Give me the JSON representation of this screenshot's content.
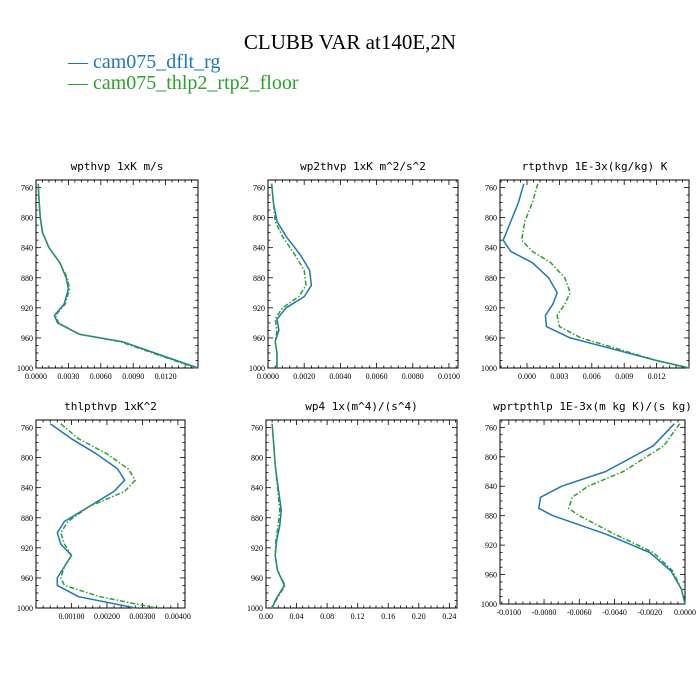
{
  "title": "CLUBB VAR at140E,2N",
  "legend": [
    {
      "label": "— cam075_dflt_rg",
      "color": "#1f77b4"
    },
    {
      "label": "— cam075_thlp2_rtp2_floor",
      "color": "#2ca02c"
    }
  ],
  "chart_data": [
    {
      "type": "line",
      "title": "wpthvp  1xK m/s",
      "xlim": [
        0,
        0.015
      ],
      "xticks": [
        0,
        0.003,
        0.006,
        0.009,
        0.012
      ],
      "xtick_labels": [
        "0.0000",
        "0.0030",
        "0.0060",
        "0.0090",
        "0.0120"
      ],
      "ylim": [
        1000,
        750
      ],
      "yticks": [
        760,
        800,
        840,
        880,
        920,
        960,
        1000
      ],
      "series": [
        {
          "name": "cam075_dflt_rg",
          "color": "#1f77b4",
          "dash": false,
          "x": [
            0.0002,
            0.0003,
            0.0004,
            0.0006,
            0.0012,
            0.0022,
            0.0028,
            0.003,
            0.0026,
            0.0017,
            0.002,
            0.004,
            0.008,
            0.011,
            0.015
          ],
          "y": [
            755,
            780,
            800,
            820,
            840,
            860,
            880,
            895,
            915,
            930,
            940,
            955,
            965,
            980,
            1000
          ]
        },
        {
          "name": "cam075_thlp2_rtp2_floor",
          "color": "#2ca02c",
          "dash": true,
          "x": [
            0.0002,
            0.0003,
            0.0004,
            0.0006,
            0.0012,
            0.0022,
            0.0029,
            0.0031,
            0.0027,
            0.0018,
            0.0021,
            0.004,
            0.0078,
            0.0108,
            0.0148
          ],
          "y": [
            755,
            780,
            800,
            820,
            840,
            860,
            880,
            895,
            915,
            930,
            940,
            955,
            965,
            980,
            1000
          ]
        }
      ]
    },
    {
      "type": "line",
      "title": "wp2thvp  1xK m^2/s^2",
      "xlim": [
        0,
        0.0105
      ],
      "xticks": [
        0,
        0.002,
        0.004,
        0.006,
        0.008,
        0.01
      ],
      "xtick_labels": [
        "0.0000",
        "0.0020",
        "0.0040",
        "0.0060",
        "0.0080",
        "0.0100"
      ],
      "ylim": [
        1000,
        750
      ],
      "yticks": [
        760,
        800,
        840,
        880,
        920,
        960,
        1000
      ],
      "series": [
        {
          "name": "cam075_dflt_rg",
          "color": "#1f77b4",
          "dash": false,
          "x": [
            0.0002,
            0.0003,
            0.0005,
            0.001,
            0.0018,
            0.0023,
            0.0024,
            0.002,
            0.001,
            0.0005,
            0.0006,
            0.0004,
            0.0005,
            0.0005
          ],
          "y": [
            755,
            780,
            805,
            825,
            850,
            870,
            890,
            905,
            920,
            935,
            950,
            965,
            980,
            1000
          ]
        },
        {
          "name": "cam075_thlp2_rtp2_floor",
          "color": "#2ca02c",
          "dash": true,
          "x": [
            0.0002,
            0.0003,
            0.0004,
            0.0008,
            0.0015,
            0.002,
            0.0021,
            0.0017,
            0.0008,
            0.0004,
            0.0005,
            0.0004,
            0.0005,
            0.0005
          ],
          "y": [
            755,
            780,
            805,
            825,
            850,
            870,
            890,
            905,
            920,
            935,
            950,
            965,
            980,
            1000
          ]
        }
      ]
    },
    {
      "type": "line",
      "title": "rtpthvp  1E-3x(kg/kg) K",
      "xlim": [
        -0.0025,
        0.015
      ],
      "xticks": [
        0,
        0.003,
        0.006,
        0.009,
        0.012
      ],
      "xtick_labels": [
        "0.000",
        "0.003",
        "0.006",
        "0.009",
        "0.012"
      ],
      "ylim": [
        1000,
        750
      ],
      "yticks": [
        760,
        800,
        840,
        880,
        920,
        960,
        1000
      ],
      "series": [
        {
          "name": "cam075_dflt_rg",
          "color": "#1f77b4",
          "dash": false,
          "x": [
            -0.0003,
            -0.0008,
            -0.0015,
            -0.0022,
            -0.0015,
            0.0005,
            0.002,
            0.0028,
            0.0024,
            0.0017,
            0.0018,
            0.004,
            0.008,
            0.012,
            0.015
          ],
          "y": [
            755,
            780,
            805,
            830,
            845,
            860,
            880,
            900,
            915,
            930,
            945,
            960,
            975,
            990,
            1000
          ]
        },
        {
          "name": "cam075_thlp2_rtp2_floor",
          "color": "#2ca02c",
          "dash": true,
          "x": [
            0.001,
            0.0005,
            -0.0002,
            -0.0005,
            0.0005,
            0.0022,
            0.0035,
            0.004,
            0.0035,
            0.0028,
            0.003,
            0.005,
            0.0085,
            0.012,
            0.015
          ],
          "y": [
            755,
            780,
            805,
            830,
            845,
            860,
            880,
            900,
            915,
            930,
            945,
            960,
            975,
            990,
            1000
          ]
        }
      ]
    },
    {
      "type": "line",
      "title": "thlpthvp  1xK^2",
      "xlim": [
        0,
        0.0042
      ],
      "xticks": [
        0.001,
        0.002,
        0.003,
        0.004
      ],
      "xtick_labels": [
        "0.00100",
        "0.00200",
        "0.00300",
        "0.00400"
      ],
      "ylim": [
        1000,
        750
      ],
      "yticks": [
        760,
        800,
        840,
        880,
        920,
        960,
        1000
      ],
      "series": [
        {
          "name": "cam075_dflt_rg",
          "color": "#1f77b4",
          "dash": false,
          "x": [
            0.0004,
            0.001,
            0.0017,
            0.0023,
            0.0025,
            0.0022,
            0.0015,
            0.0008,
            0.0006,
            0.0007,
            0.001,
            0.0008,
            0.0006,
            0.0006,
            0.0012,
            0.0028
          ],
          "y": [
            755,
            775,
            795,
            815,
            830,
            845,
            865,
            885,
            900,
            915,
            930,
            945,
            960,
            970,
            985,
            1000
          ]
        },
        {
          "name": "cam075_thlp2_rtp2_floor",
          "color": "#2ca02c",
          "dash": true,
          "x": [
            0.0007,
            0.0012,
            0.002,
            0.0026,
            0.0028,
            0.0025,
            0.0015,
            0.0009,
            0.0007,
            0.0008,
            0.001,
            0.0008,
            0.0007,
            0.0008,
            0.0018,
            0.0034
          ],
          "y": [
            755,
            775,
            795,
            815,
            830,
            845,
            865,
            885,
            900,
            915,
            930,
            945,
            960,
            970,
            985,
            1000
          ]
        }
      ]
    },
    {
      "type": "line",
      "title": "wp4  1x(m^4)/(s^4)",
      "xlim": [
        0,
        0.25
      ],
      "xticks": [
        0,
        0.04,
        0.08,
        0.12,
        0.16,
        0.2,
        0.24
      ],
      "xtick_labels": [
        "0.00",
        "0.04",
        "0.08",
        "0.12",
        "0.16",
        "0.20",
        "0.24"
      ],
      "ylim": [
        1000,
        750
      ],
      "yticks": [
        760,
        800,
        840,
        880,
        920,
        960,
        1000
      ],
      "series": [
        {
          "name": "cam075_dflt_rg",
          "color": "#1f77b4",
          "dash": false,
          "x": [
            0.008,
            0.01,
            0.012,
            0.016,
            0.02,
            0.018,
            0.014,
            0.012,
            0.015,
            0.024,
            0.012,
            0.008
          ],
          "y": [
            755,
            780,
            810,
            840,
            870,
            890,
            910,
            930,
            950,
            970,
            990,
            1000
          ]
        },
        {
          "name": "cam075_thlp2_rtp2_floor",
          "color": "#2ca02c",
          "dash": true,
          "x": [
            0.008,
            0.01,
            0.012,
            0.015,
            0.018,
            0.016,
            0.013,
            0.012,
            0.015,
            0.025,
            0.013,
            0.008
          ],
          "y": [
            755,
            780,
            810,
            840,
            870,
            890,
            910,
            930,
            950,
            970,
            990,
            1000
          ]
        }
      ]
    },
    {
      "type": "line",
      "title": "wprtpthlp  1E-3x(m kg K)/(s kg)",
      "xlim": [
        -0.0105,
        0.0
      ],
      "xticks": [
        -0.01,
        -0.008,
        -0.006,
        -0.004,
        -0.002,
        0.0
      ],
      "xtick_labels": [
        "-0.0100",
        "-0.0080",
        "-0.0060",
        "-0.0040",
        "-0.0020",
        "0.0000"
      ],
      "ylim": [
        1000,
        750
      ],
      "yticks": [
        760,
        800,
        840,
        880,
        920,
        960,
        1000
      ],
      "series": [
        {
          "name": "cam075_dflt_rg",
          "color": "#1f77b4",
          "dash": false,
          "x": [
            -0.0006,
            -0.0018,
            -0.0045,
            -0.007,
            -0.0082,
            -0.0083,
            -0.0075,
            -0.0045,
            -0.002,
            -0.0008,
            -0.0002,
            0.0
          ],
          "y": [
            755,
            785,
            820,
            840,
            855,
            870,
            880,
            905,
            930,
            955,
            980,
            1000
          ]
        },
        {
          "name": "cam075_thlp2_rtp2_floor",
          "color": "#2ca02c",
          "dash": true,
          "x": [
            -0.0003,
            -0.0012,
            -0.0035,
            -0.0055,
            -0.0064,
            -0.0066,
            -0.006,
            -0.004,
            -0.0018,
            -0.0007,
            -0.0002,
            0.0
          ],
          "y": [
            755,
            785,
            820,
            840,
            855,
            870,
            880,
            905,
            930,
            955,
            980,
            1000
          ]
        }
      ]
    }
  ]
}
